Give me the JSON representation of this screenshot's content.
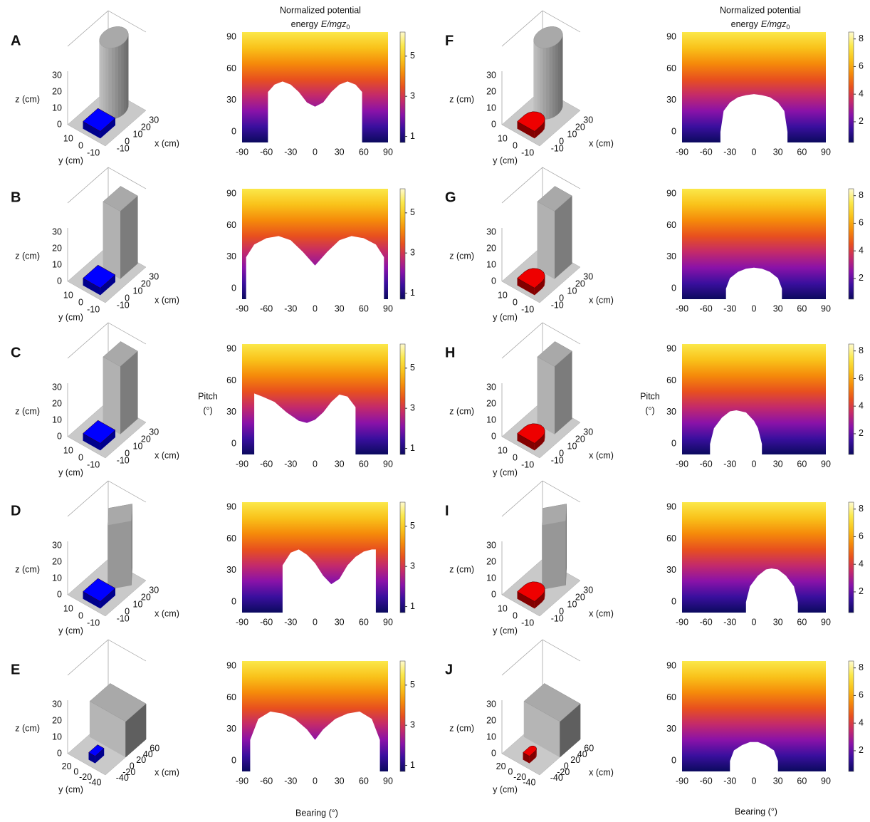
{
  "figure": {
    "colorbar_title": {
      "line1": "Normalized potential",
      "line2": "energy",
      "formula": "E/mgz",
      "subscript": "0"
    },
    "pitch_label": {
      "name": "Pitch",
      "unit": "(°)"
    },
    "bearing_label": "Bearing (°)",
    "schematic_axes": {
      "x": "x (cm)",
      "y": "y (cm)",
      "z": "z (cm)"
    },
    "colormap": [
      "#0b0a5e",
      "#3a0f9e",
      "#8a12a8",
      "#c42a6a",
      "#e8501e",
      "#f58a0a",
      "#f9c21a",
      "#fbe84a",
      "#fffbd0"
    ]
  },
  "chart_data": [
    {
      "type": "heatmap",
      "panel": "A",
      "xlim": [
        -90,
        90
      ],
      "ylim": [
        -10,
        95
      ],
      "xticks": [
        -90,
        -60,
        -30,
        0,
        30,
        60,
        90
      ],
      "yticks": [
        0,
        30,
        60,
        90
      ],
      "clim": [
        0.7,
        6.2
      ],
      "cticks": [
        1,
        3,
        5
      ],
      "infeasible": {
        "bearing": [
          -58,
          -50,
          -40,
          -30,
          -20,
          -10,
          0,
          10,
          20,
          30,
          40,
          50,
          58
        ],
        "pitch": [
          38,
          45,
          48,
          45,
          38,
          28,
          24,
          28,
          38,
          45,
          48,
          45,
          38
        ]
      },
      "schematic": {
        "obstacle": "cylinder",
        "robot_shape": "box",
        "robot_color": "#0000ff",
        "zticks": [
          0,
          10,
          20,
          30
        ],
        "yticks": [
          10,
          0,
          -10
        ],
        "xticks": [
          -10,
          0,
          10,
          20,
          30
        ]
      }
    },
    {
      "type": "heatmap",
      "panel": "B",
      "xlim": [
        -90,
        90
      ],
      "ylim": [
        -10,
        95
      ],
      "xticks": [
        -90,
        -60,
        -30,
        0,
        30,
        60,
        90
      ],
      "yticks": [
        0,
        30,
        60,
        90
      ],
      "clim": [
        0.7,
        6.2
      ],
      "cticks": [
        1,
        3,
        5
      ],
      "infeasible": {
        "bearing": [
          -85,
          -75,
          -60,
          -45,
          -30,
          -15,
          0,
          15,
          30,
          45,
          60,
          75,
          85
        ],
        "pitch": [
          30,
          42,
          48,
          50,
          46,
          35,
          22,
          35,
          46,
          50,
          48,
          42,
          30
        ]
      },
      "schematic": {
        "obstacle": "box",
        "robot_shape": "box",
        "robot_color": "#0000ff",
        "zticks": [
          0,
          10,
          20,
          30
        ],
        "yticks": [
          10,
          0,
          -10
        ],
        "xticks": [
          -10,
          0,
          10,
          20,
          30
        ]
      }
    },
    {
      "type": "heatmap",
      "panel": "C",
      "xlim": [
        -90,
        90
      ],
      "ylim": [
        -10,
        95
      ],
      "xticks": [
        -90,
        -60,
        -30,
        0,
        30,
        60,
        90
      ],
      "yticks": [
        0,
        30,
        60,
        90
      ],
      "clim": [
        0.7,
        6.2
      ],
      "cticks": [
        1,
        3,
        5
      ],
      "infeasible": {
        "bearing": [
          -75,
          -65,
          -50,
          -35,
          -20,
          -10,
          0,
          10,
          20,
          30,
          40,
          50
        ],
        "pitch": [
          48,
          45,
          40,
          30,
          22,
          20,
          23,
          30,
          40,
          47,
          45,
          35
        ]
      },
      "schematic": {
        "obstacle": "box",
        "robot_shape": "box",
        "robot_color": "#0000ff",
        "zticks": [
          0,
          10,
          20,
          30
        ],
        "yticks": [
          10,
          0,
          -10
        ],
        "xticks": [
          -10,
          0,
          10,
          20,
          30
        ]
      }
    },
    {
      "type": "heatmap",
      "panel": "D",
      "xlim": [
        -90,
        90
      ],
      "ylim": [
        -10,
        95
      ],
      "xticks": [
        -90,
        -60,
        -30,
        0,
        30,
        60,
        90
      ],
      "yticks": [
        0,
        30,
        60,
        90
      ],
      "clim": [
        0.7,
        6.2
      ],
      "cticks": [
        1,
        3,
        5
      ],
      "infeasible": {
        "bearing": [
          -40,
          -30,
          -20,
          -10,
          0,
          10,
          20,
          30,
          40,
          50,
          60,
          70,
          75
        ],
        "pitch": [
          35,
          47,
          50,
          45,
          37,
          25,
          17,
          22,
          35,
          43,
          48,
          50,
          50
        ]
      },
      "schematic": {
        "obstacle": "rotated",
        "robot_shape": "box",
        "robot_color": "#0000ff",
        "zticks": [
          0,
          10,
          20,
          30
        ],
        "yticks": [
          10,
          0,
          -10
        ],
        "xticks": [
          -10,
          0,
          10,
          20,
          30
        ]
      }
    },
    {
      "type": "heatmap",
      "panel": "E",
      "xlim": [
        -90,
        90
      ],
      "ylim": [
        -10,
        95
      ],
      "xticks": [
        -90,
        -60,
        -30,
        0,
        30,
        60,
        90
      ],
      "yticks": [
        0,
        30,
        60,
        90
      ],
      "clim": [
        0.7,
        6.2
      ],
      "cticks": [
        1,
        3,
        5
      ],
      "infeasible": {
        "bearing": [
          -80,
          -70,
          -55,
          -40,
          -25,
          -10,
          0,
          10,
          25,
          40,
          55,
          70,
          80
        ],
        "pitch": [
          20,
          40,
          47,
          45,
          40,
          30,
          20,
          30,
          40,
          45,
          47,
          40,
          20
        ]
      },
      "schematic": {
        "obstacle": "wall",
        "robot_shape": "box",
        "robot_color": "#0000ff",
        "zticks": [
          0,
          10,
          20,
          30
        ],
        "yticks": [
          20,
          0,
          -20,
          -40
        ],
        "xticks": [
          -40,
          -20,
          0,
          20,
          40,
          60
        ]
      }
    },
    {
      "type": "heatmap",
      "panel": "F",
      "xlim": [
        -90,
        90
      ],
      "ylim": [
        -10,
        95
      ],
      "xticks": [
        -90,
        -60,
        -30,
        0,
        30,
        60,
        90
      ],
      "yticks": [
        0,
        30,
        60,
        90
      ],
      "clim": [
        0.5,
        8.5
      ],
      "cticks": [
        2,
        4,
        6,
        8
      ],
      "infeasible": {
        "bearing": [
          -42,
          -38,
          -30,
          -20,
          -10,
          0,
          10,
          20,
          30,
          38,
          42
        ],
        "pitch": [
          0,
          20,
          28,
          33,
          35,
          36,
          35,
          33,
          28,
          20,
          0
        ]
      },
      "schematic": {
        "obstacle": "cylinder",
        "robot_shape": "rounded",
        "robot_color": "#ee0000",
        "zticks": [
          0,
          10,
          20,
          30
        ],
        "yticks": [
          10,
          0,
          -10
        ],
        "xticks": [
          -10,
          0,
          10,
          20,
          30
        ]
      }
    },
    {
      "type": "heatmap",
      "panel": "G",
      "xlim": [
        -90,
        90
      ],
      "ylim": [
        -10,
        95
      ],
      "xticks": [
        -90,
        -60,
        -30,
        0,
        30,
        60,
        90
      ],
      "yticks": [
        0,
        30,
        60,
        90
      ],
      "clim": [
        0.5,
        8.5
      ],
      "cticks": [
        2,
        4,
        6,
        8
      ],
      "infeasible": {
        "bearing": [
          -35,
          -30,
          -20,
          -10,
          0,
          10,
          20,
          30,
          35
        ],
        "pitch": [
          0,
          10,
          16,
          19,
          20,
          19,
          16,
          10,
          0
        ]
      },
      "schematic": {
        "obstacle": "box",
        "robot_shape": "rounded",
        "robot_color": "#ee0000",
        "zticks": [
          0,
          10,
          20,
          30
        ],
        "yticks": [
          10,
          0,
          -10
        ],
        "xticks": [
          -10,
          0,
          10,
          20,
          30
        ]
      }
    },
    {
      "type": "heatmap",
      "panel": "H",
      "xlim": [
        -90,
        90
      ],
      "ylim": [
        -10,
        95
      ],
      "xticks": [
        -90,
        -60,
        -30,
        0,
        30,
        60,
        90
      ],
      "yticks": [
        0,
        30,
        60,
        90
      ],
      "clim": [
        0.5,
        8.5
      ],
      "cticks": [
        2,
        4,
        6,
        8
      ],
      "infeasible": {
        "bearing": [
          -55,
          -50,
          -40,
          -30,
          -22,
          -10,
          0,
          5,
          10
        ],
        "pitch": [
          0,
          15,
          25,
          31,
          32,
          30,
          22,
          15,
          0
        ]
      },
      "schematic": {
        "obstacle": "box",
        "robot_shape": "rounded",
        "robot_color": "#ee0000",
        "zticks": [
          0,
          10,
          20,
          30
        ],
        "yticks": [
          10,
          0,
          -10
        ],
        "xticks": [
          -10,
          0,
          10,
          20,
          30
        ]
      }
    },
    {
      "type": "heatmap",
      "panel": "I",
      "xlim": [
        -90,
        90
      ],
      "ylim": [
        -10,
        95
      ],
      "xticks": [
        -90,
        -60,
        -30,
        0,
        30,
        60,
        90
      ],
      "yticks": [
        0,
        30,
        60,
        90
      ],
      "clim": [
        0.5,
        8.5
      ],
      "cticks": [
        2,
        4,
        6,
        8
      ],
      "infeasible": {
        "bearing": [
          -10,
          -5,
          5,
          15,
          22,
          30,
          40,
          50,
          55
        ],
        "pitch": [
          0,
          15,
          25,
          31,
          32,
          31,
          25,
          15,
          0
        ]
      },
      "schematic": {
        "obstacle": "rotated",
        "robot_shape": "rounded",
        "robot_color": "#ee0000",
        "zticks": [
          0,
          10,
          20,
          30
        ],
        "yticks": [
          10,
          0,
          -10
        ],
        "xticks": [
          -10,
          0,
          10,
          20,
          30
        ]
      }
    },
    {
      "type": "heatmap",
      "panel": "J",
      "xlim": [
        -90,
        90
      ],
      "ylim": [
        -10,
        95
      ],
      "xticks": [
        -90,
        -60,
        -30,
        0,
        30,
        60,
        90
      ],
      "yticks": [
        0,
        30,
        60,
        90
      ],
      "clim": [
        0.5,
        8.5
      ],
      "cticks": [
        2,
        4,
        6,
        8
      ],
      "infeasible": {
        "bearing": [
          -30,
          -25,
          -15,
          -5,
          0,
          5,
          15,
          25,
          30
        ],
        "pitch": [
          0,
          10,
          15,
          18,
          18,
          18,
          15,
          10,
          0
        ]
      },
      "schematic": {
        "obstacle": "wall",
        "robot_shape": "rounded",
        "robot_color": "#ee0000",
        "zticks": [
          0,
          10,
          20,
          30
        ],
        "yticks": [
          20,
          0,
          -20,
          -40
        ],
        "xticks": [
          -40,
          -20,
          0,
          20,
          40,
          60
        ]
      }
    }
  ]
}
